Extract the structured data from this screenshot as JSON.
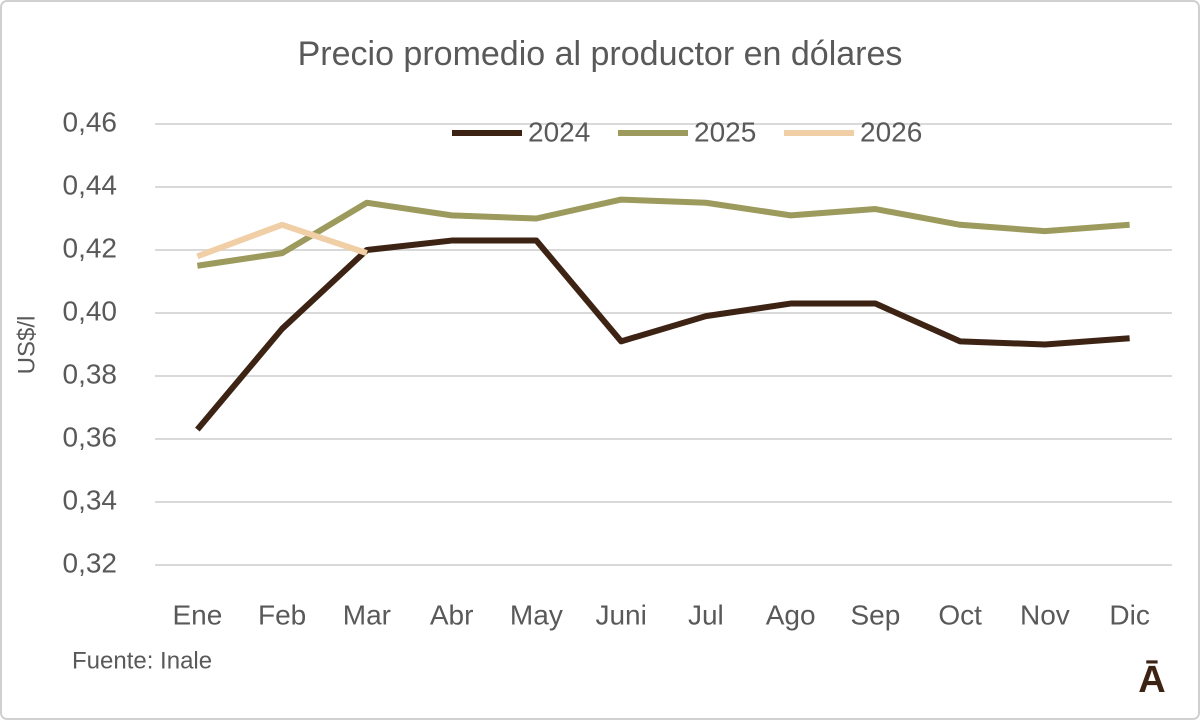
{
  "chart_data": {
    "type": "line",
    "title": "Precio promedio al productor en dólares",
    "y_label": "US$/l",
    "source": "Fuente: Inale",
    "logo": "Ā",
    "categories": [
      "Ene",
      "Feb",
      "Mar",
      "Abr",
      "May",
      "Juni",
      "Jul",
      "Ago",
      "Sep",
      "Oct",
      "Nov",
      "Dic"
    ],
    "series": [
      {
        "name": "2024",
        "color": "#3d2314",
        "values": [
          0.363,
          0.395,
          0.42,
          0.423,
          0.423,
          0.391,
          0.399,
          0.403,
          0.403,
          0.391,
          0.39,
          0.392
        ]
      },
      {
        "name": "2025",
        "color": "#9c9a5c",
        "values": [
          0.415,
          0.419,
          0.435,
          0.431,
          0.43,
          0.436,
          0.435,
          0.431,
          0.433,
          0.428,
          0.426,
          0.428
        ]
      },
      {
        "name": "2026",
        "color": "#f0cfa6",
        "values": [
          0.418,
          0.428,
          0.419,
          null,
          null,
          null,
          null,
          null,
          null,
          null,
          null,
          null
        ]
      }
    ],
    "ylim": [
      0.32,
      0.46
    ],
    "yticks": [
      {
        "value": 0.32,
        "label": "0,32"
      },
      {
        "value": 0.34,
        "label": "0,34"
      },
      {
        "value": 0.36,
        "label": "0,36"
      },
      {
        "value": 0.38,
        "label": "0,38"
      },
      {
        "value": 0.4,
        "label": "0,40"
      },
      {
        "value": 0.42,
        "label": "0,42"
      },
      {
        "value": 0.44,
        "label": "0,44"
      },
      {
        "value": 0.46,
        "label": "0,46"
      }
    ],
    "grid": true,
    "legend": "top"
  }
}
